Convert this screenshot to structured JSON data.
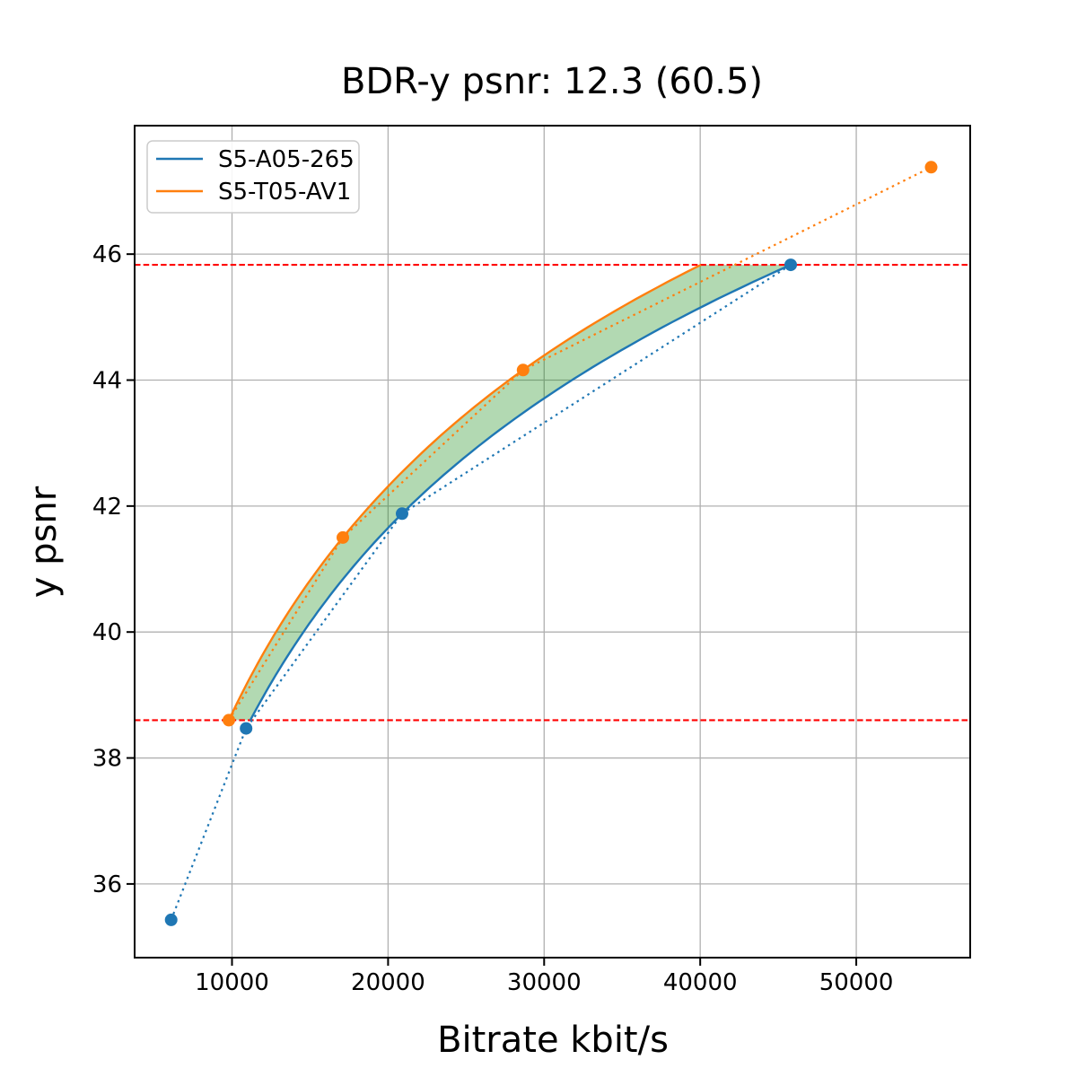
{
  "chart_data": {
    "type": "line",
    "title": "BDR-y psnr: 12.3 (60.5)",
    "xlabel": "Bitrate kbit/s",
    "ylabel": "y psnr",
    "xlim": [
      3760,
      57300
    ],
    "ylim": [
      34.83,
      48.04
    ],
    "xticks": [
      10000,
      20000,
      30000,
      40000,
      50000
    ],
    "yticks": [
      36,
      38,
      40,
      42,
      44,
      46
    ],
    "grid": true,
    "grid_color": "#b0b0b0",
    "legend_position": "upper left",
    "series": [
      {
        "name": "S5-A05-265",
        "color": "#1f77b4",
        "points": [
          [
            6100,
            35.43
          ],
          [
            10900,
            38.47
          ],
          [
            20900,
            41.88
          ],
          [
            45800,
            45.83
          ]
        ]
      },
      {
        "name": "S5-T05-AV1",
        "color": "#ff7f0e",
        "points": [
          [
            9800,
            38.6
          ],
          [
            17100,
            41.5
          ],
          [
            28650,
            44.16
          ],
          [
            54800,
            47.38
          ]
        ]
      }
    ],
    "overlap_interval": {
      "psnr_min": 38.6,
      "psnr_max": 45.83,
      "line_color": "#ff0000",
      "line_style": "dashed"
    },
    "fill_between": {
      "color": "#008000",
      "opacity": 0.3
    }
  }
}
